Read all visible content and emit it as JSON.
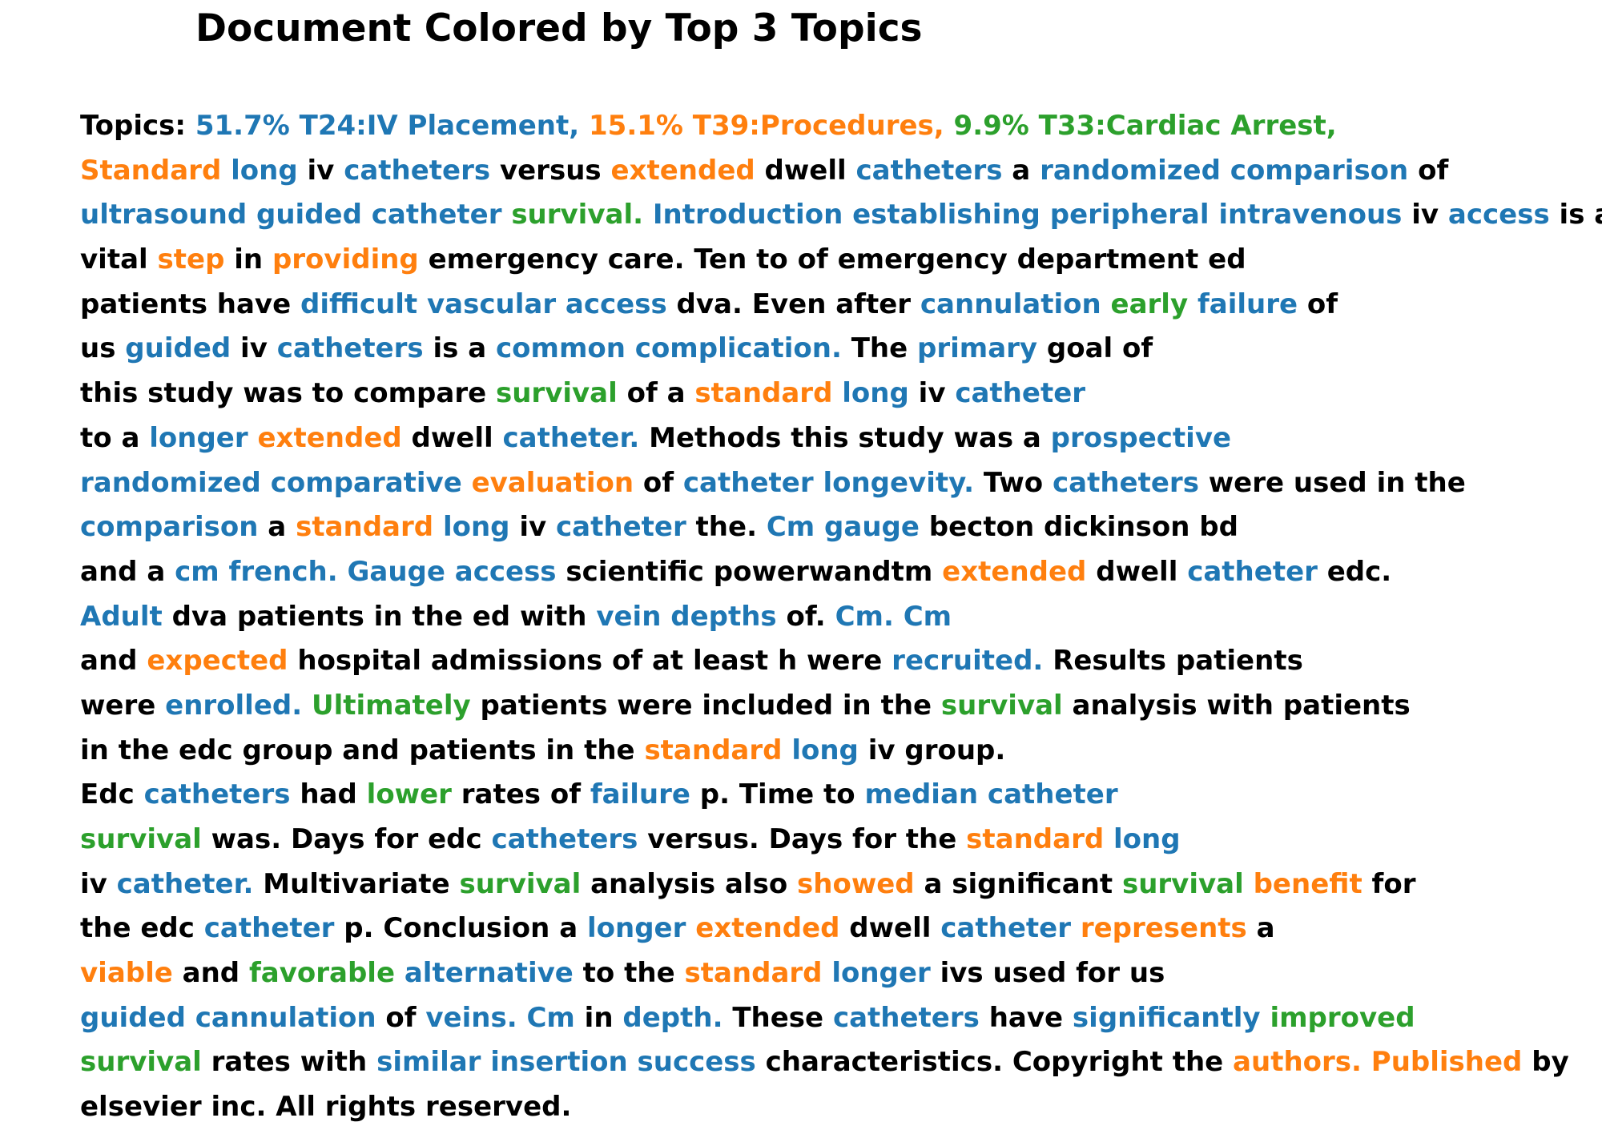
{
  "title": "Document Colored by Top 3 Topics",
  "colors": {
    "T24": "#1f77b4",
    "T39": "#ff7f0e",
    "T33": "#2ca02c",
    "text": "#000000"
  },
  "lines": [
    [
      [
        "Topics: ",
        "n"
      ],
      [
        "51.7% T24:IV Placement,",
        "t1"
      ],
      [
        " ",
        "n"
      ],
      [
        "15.1% T39:Procedures,",
        "t2"
      ],
      [
        " ",
        "n"
      ],
      [
        "9.9% T33:Cardiac Arrest,",
        "t3"
      ]
    ],
    [
      [
        "Standard",
        "t2"
      ],
      [
        " ",
        "n"
      ],
      [
        "long",
        "t1"
      ],
      [
        " iv ",
        "n"
      ],
      [
        "catheters",
        "t1"
      ],
      [
        " versus ",
        "n"
      ],
      [
        "extended",
        "t2"
      ],
      [
        " dwell ",
        "n"
      ],
      [
        "catheters",
        "t1"
      ],
      [
        " a ",
        "n"
      ],
      [
        "randomized comparison",
        "t1"
      ],
      [
        " of",
        "n"
      ]
    ],
    [
      [
        "ultrasound guided catheter",
        "t1"
      ],
      [
        " ",
        "n"
      ],
      [
        "survival.",
        "t3"
      ],
      [
        " ",
        "n"
      ],
      [
        "Introduction establishing peripheral intravenous",
        "t1"
      ],
      [
        " iv ",
        "n"
      ],
      [
        "access",
        "t1"
      ],
      [
        " is a",
        "n"
      ]
    ],
    [
      [
        "vital ",
        "n"
      ],
      [
        "step",
        "t2"
      ],
      [
        " in ",
        "n"
      ],
      [
        "providing",
        "t2"
      ],
      [
        " emergency care. Ten to of emergency department ed",
        "n"
      ]
    ],
    [
      [
        "patients have ",
        "n"
      ],
      [
        "difficult vascular access",
        "t1"
      ],
      [
        " dva. Even after ",
        "n"
      ],
      [
        "cannulation",
        "t1"
      ],
      [
        " ",
        "n"
      ],
      [
        "early",
        "t3"
      ],
      [
        " ",
        "n"
      ],
      [
        "failure",
        "t1"
      ],
      [
        " of",
        "n"
      ]
    ],
    [
      [
        "us ",
        "n"
      ],
      [
        "guided",
        "t1"
      ],
      [
        " iv ",
        "n"
      ],
      [
        "catheters",
        "t1"
      ],
      [
        " is a ",
        "n"
      ],
      [
        "common complication.",
        "t1"
      ],
      [
        " The ",
        "n"
      ],
      [
        "primary",
        "t1"
      ],
      [
        " goal of",
        "n"
      ]
    ],
    [
      [
        "this study was to compare ",
        "n"
      ],
      [
        "survival",
        "t3"
      ],
      [
        " of a ",
        "n"
      ],
      [
        "standard",
        "t2"
      ],
      [
        " ",
        "n"
      ],
      [
        "long",
        "t1"
      ],
      [
        " iv ",
        "n"
      ],
      [
        "catheter",
        "t1"
      ]
    ],
    [
      [
        "to a ",
        "n"
      ],
      [
        "longer",
        "t1"
      ],
      [
        " ",
        "n"
      ],
      [
        "extended",
        "t2"
      ],
      [
        " dwell ",
        "n"
      ],
      [
        "catheter.",
        "t1"
      ],
      [
        " Methods this study was a ",
        "n"
      ],
      [
        "prospective",
        "t1"
      ]
    ],
    [
      [
        "randomized comparative",
        "t1"
      ],
      [
        " ",
        "n"
      ],
      [
        "evaluation",
        "t2"
      ],
      [
        " of ",
        "n"
      ],
      [
        "catheter longevity.",
        "t1"
      ],
      [
        " Two ",
        "n"
      ],
      [
        "catheters",
        "t1"
      ],
      [
        " were used in the",
        "n"
      ]
    ],
    [
      [
        "comparison",
        "t1"
      ],
      [
        " a ",
        "n"
      ],
      [
        "standard",
        "t2"
      ],
      [
        " ",
        "n"
      ],
      [
        "long",
        "t1"
      ],
      [
        " iv ",
        "n"
      ],
      [
        "catheter",
        "t1"
      ],
      [
        " the. ",
        "n"
      ],
      [
        "Cm gauge",
        "t1"
      ],
      [
        " becton dickinson bd",
        "n"
      ]
    ],
    [
      [
        "and a ",
        "n"
      ],
      [
        "cm french. Gauge access",
        "t1"
      ],
      [
        " scientific powerwandtm ",
        "n"
      ],
      [
        "extended",
        "t2"
      ],
      [
        " dwell ",
        "n"
      ],
      [
        "catheter",
        "t1"
      ],
      [
        " edc.",
        "n"
      ]
    ],
    [
      [
        "Adult",
        "t1"
      ],
      [
        " dva patients in the ed with ",
        "n"
      ],
      [
        "vein depths",
        "t1"
      ],
      [
        " of. ",
        "n"
      ],
      [
        "Cm. Cm",
        "t1"
      ]
    ],
    [
      [
        "and ",
        "n"
      ],
      [
        "expected",
        "t2"
      ],
      [
        " hospital admissions of at least h were ",
        "n"
      ],
      [
        "recruited.",
        "t1"
      ],
      [
        " Results patients",
        "n"
      ]
    ],
    [
      [
        "were ",
        "n"
      ],
      [
        "enrolled.",
        "t1"
      ],
      [
        " ",
        "n"
      ],
      [
        "Ultimately",
        "t3"
      ],
      [
        " patients were included in the ",
        "n"
      ],
      [
        "survival",
        "t3"
      ],
      [
        " analysis with patients",
        "n"
      ]
    ],
    [
      [
        "in the edc group and patients in the ",
        "n"
      ],
      [
        "standard",
        "t2"
      ],
      [
        " ",
        "n"
      ],
      [
        "long",
        "t1"
      ],
      [
        " iv group.",
        "n"
      ]
    ],
    [
      [
        "Edc ",
        "n"
      ],
      [
        "catheters",
        "t1"
      ],
      [
        " had ",
        "n"
      ],
      [
        "lower",
        "t3"
      ],
      [
        " rates of ",
        "n"
      ],
      [
        "failure",
        "t1"
      ],
      [
        " p. Time to ",
        "n"
      ],
      [
        "median catheter",
        "t1"
      ]
    ],
    [
      [
        "survival",
        "t3"
      ],
      [
        " was. Days for edc ",
        "n"
      ],
      [
        "catheters",
        "t1"
      ],
      [
        " versus. Days for the ",
        "n"
      ],
      [
        "standard",
        "t2"
      ],
      [
        " ",
        "n"
      ],
      [
        "long",
        "t1"
      ]
    ],
    [
      [
        "iv ",
        "n"
      ],
      [
        "catheter.",
        "t1"
      ],
      [
        " Multivariate ",
        "n"
      ],
      [
        "survival",
        "t3"
      ],
      [
        " analysis also ",
        "n"
      ],
      [
        "showed",
        "t2"
      ],
      [
        " a significant ",
        "n"
      ],
      [
        "survival",
        "t3"
      ],
      [
        " ",
        "n"
      ],
      [
        "benefit",
        "t2"
      ],
      [
        " for",
        "n"
      ]
    ],
    [
      [
        "the edc ",
        "n"
      ],
      [
        "catheter",
        "t1"
      ],
      [
        " p. Conclusion a ",
        "n"
      ],
      [
        "longer",
        "t1"
      ],
      [
        " ",
        "n"
      ],
      [
        "extended",
        "t2"
      ],
      [
        " dwell ",
        "n"
      ],
      [
        "catheter",
        "t1"
      ],
      [
        " ",
        "n"
      ],
      [
        "represents",
        "t2"
      ],
      [
        " a",
        "n"
      ]
    ],
    [
      [
        "viable",
        "t2"
      ],
      [
        " and ",
        "n"
      ],
      [
        "favorable",
        "t3"
      ],
      [
        " ",
        "n"
      ],
      [
        "alternative",
        "t1"
      ],
      [
        " to the ",
        "n"
      ],
      [
        "standard",
        "t2"
      ],
      [
        " ",
        "n"
      ],
      [
        "longer",
        "t1"
      ],
      [
        " ivs used for us",
        "n"
      ]
    ],
    [
      [
        "guided cannulation",
        "t1"
      ],
      [
        " of ",
        "n"
      ],
      [
        "veins. Cm",
        "t1"
      ],
      [
        " in ",
        "n"
      ],
      [
        "depth.",
        "t1"
      ],
      [
        " These ",
        "n"
      ],
      [
        "catheters",
        "t1"
      ],
      [
        " have ",
        "n"
      ],
      [
        "significantly",
        "t1"
      ],
      [
        " ",
        "n"
      ],
      [
        "improved",
        "t3"
      ]
    ],
    [
      [
        "survival",
        "t3"
      ],
      [
        " rates with ",
        "n"
      ],
      [
        "similar insertion success",
        "t1"
      ],
      [
        " characteristics. Copyright the ",
        "n"
      ],
      [
        "authors. Published",
        "t2"
      ],
      [
        " by",
        "n"
      ]
    ],
    [
      [
        "elsevier inc. All rights reserved.",
        "n"
      ]
    ]
  ]
}
